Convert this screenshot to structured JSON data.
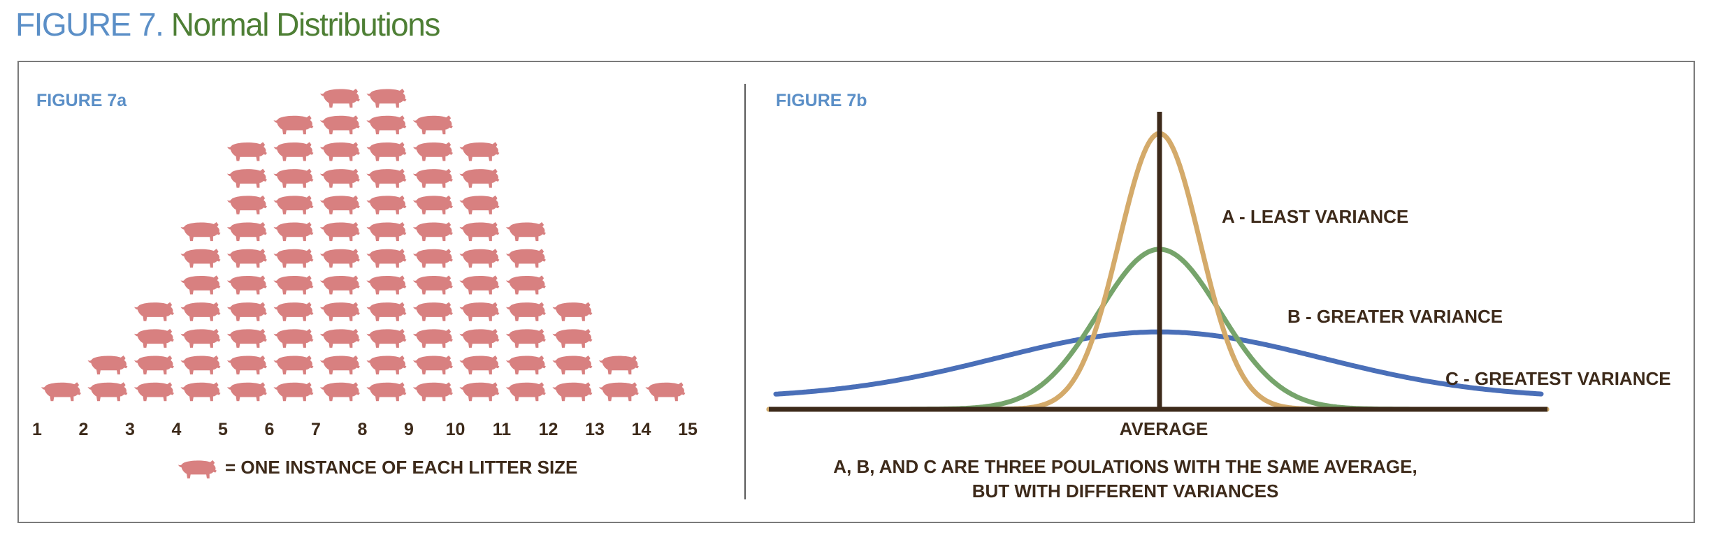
{
  "title": {
    "prefix": "FIGURE 7.",
    "main": "Normal Distributions"
  },
  "colors": {
    "pig": "#d88080",
    "curve_a": "#d4aa6a",
    "curve_b": "#76a46b",
    "curve_c": "#4a6fb8",
    "axis": "#3d2a1a",
    "blue_title": "#5b8fc7",
    "green_title": "#4e7f35"
  },
  "figure_a": {
    "label": "FIGURE 7a",
    "legend_text": "= ONE INSTANCE OF EACH LITTER SIZE",
    "legend_icon": "pig-icon"
  },
  "figure_b": {
    "label": "FIGURE 7b",
    "axis_label": "AVERAGE",
    "note_line1": "A, B, AND C ARE THREE POULATIONS WITH THE SAME AVERAGE,",
    "note_line2": "BUT WITH DIFFERENT VARIANCES"
  },
  "chart_data": [
    {
      "type": "bar",
      "title": "FIGURE 7a",
      "xlabel": "",
      "ylabel": "",
      "categories": [
        "1",
        "2",
        "3",
        "4",
        "5",
        "6",
        "7",
        "8",
        "9",
        "10",
        "11",
        "12",
        "13",
        "14",
        "15"
      ],
      "values": [
        1,
        2,
        4,
        7,
        10,
        11,
        12,
        12,
        11,
        10,
        7,
        4,
        2,
        1,
        0
      ],
      "marker": "pig-icon",
      "legend": "= ONE INSTANCE OF EACH LITTER SIZE"
    },
    {
      "type": "line",
      "title": "FIGURE 7b",
      "xlabel": "AVERAGE",
      "series": [
        {
          "name": "A - LEAST VARIANCE",
          "sigma": 1.0,
          "peak": 1.0
        },
        {
          "name": "B - GREATER VARIANCE",
          "sigma": 1.5,
          "peak": 0.58
        },
        {
          "name": "C - GREATEST VARIANCE",
          "sigma": 4.0,
          "peak": 0.24
        }
      ],
      "annotation": "A, B, AND C ARE THREE POULATIONS WITH THE SAME AVERAGE, BUT WITH DIFFERENT VARIANCES"
    }
  ]
}
